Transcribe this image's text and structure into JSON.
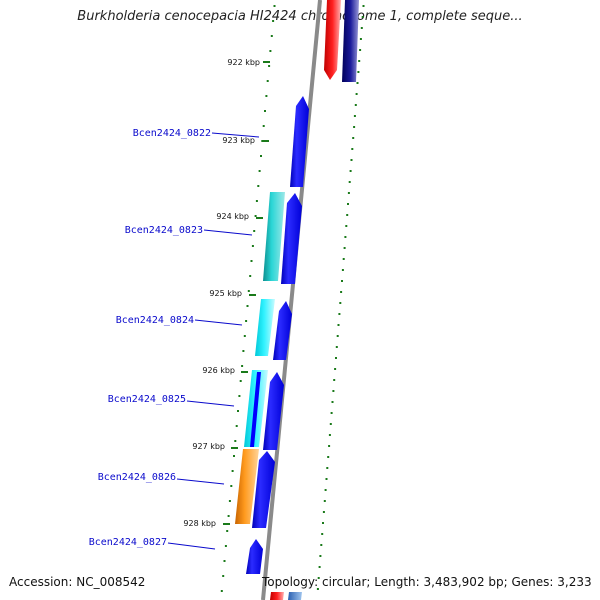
{
  "title": "Burkholderia cenocepacia HI2424 chromosome 1, complete seque...",
  "footer": {
    "accession": "Accession: NC_008542",
    "topology": "Topology: circular; Length: 3,483,902 bp; Genes: 3,233"
  },
  "ticks": [
    "922 kbp",
    "923 kbp",
    "924 kbp",
    "925 kbp",
    "926 kbp",
    "927 kbp",
    "928 kbp"
  ],
  "genes": [
    {
      "label": "Bcen2424_0822",
      "color": "#0000ff"
    },
    {
      "label": "Bcen2424_0823",
      "color": "#11b5b5"
    },
    {
      "label": "Bcen2424_0824",
      "color": "#00e5f0"
    },
    {
      "label": "Bcen2424_0825",
      "color": "#00e5f0"
    },
    {
      "label": "Bcen2424_0826",
      "color": "#f08800"
    },
    {
      "label": "Bcen2424_0827",
      "color": "#0000ff"
    }
  ],
  "colors": {
    "backbone": "#8a8a8a",
    "tick": "#1a7a1a",
    "label": "#0a0acc",
    "forward_strand": "#0000ff",
    "red_feature": "#ff0000",
    "navy_feature": "#000080"
  }
}
